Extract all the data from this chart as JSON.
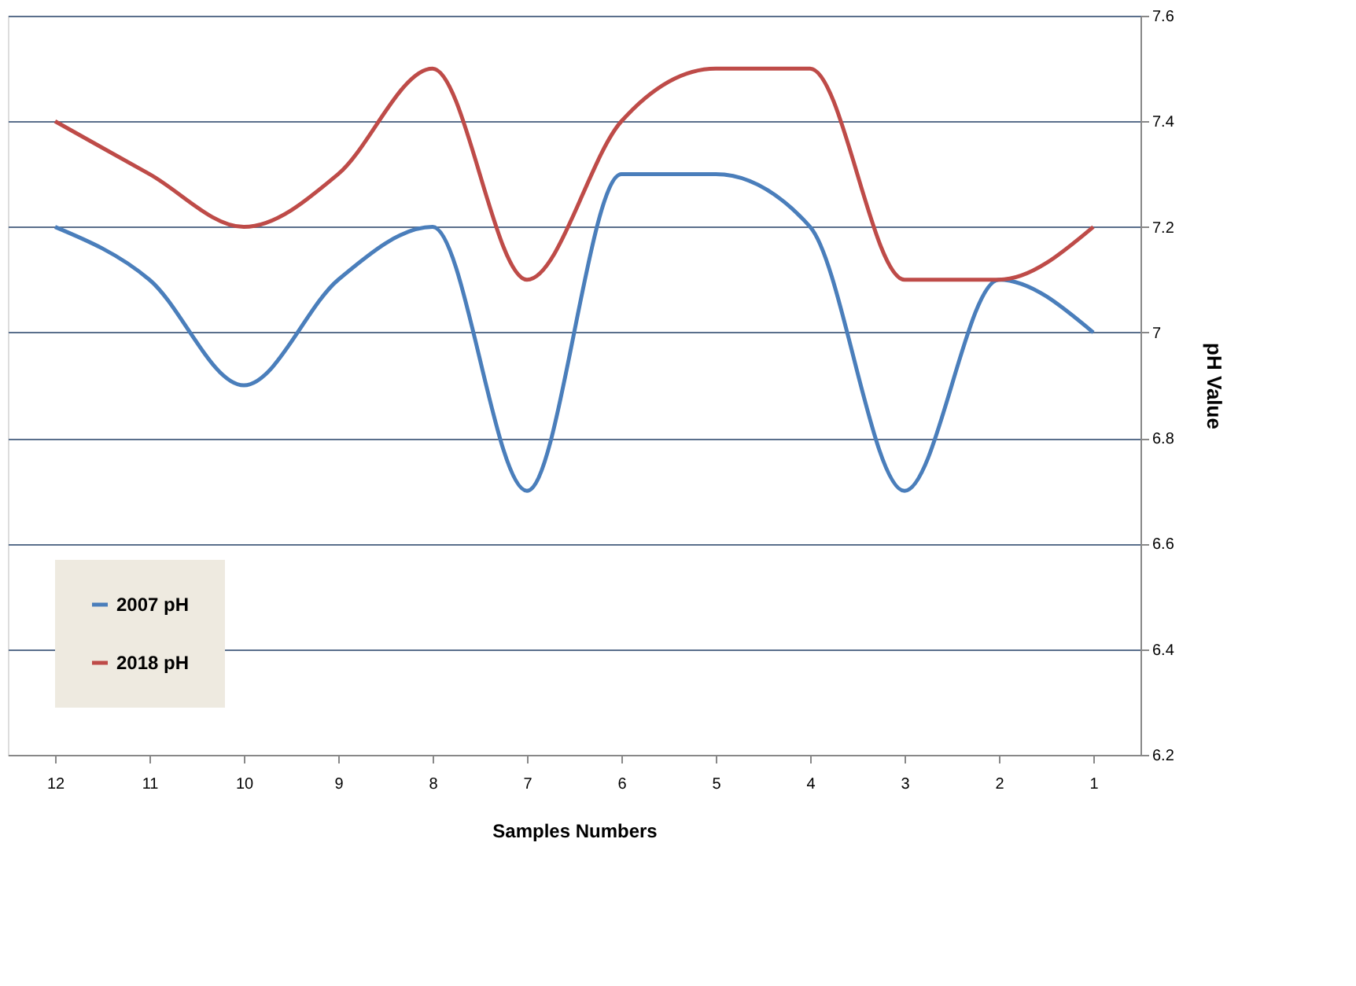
{
  "chart_data": {
    "type": "line",
    "xlabel": "Samples Numbers",
    "ylabel": "pH Value",
    "categories": [
      "12",
      "11",
      "10",
      "9",
      "8",
      "7",
      "6",
      "5",
      "4",
      "3",
      "2",
      "1"
    ],
    "series": [
      {
        "name": "2007 pH",
        "color": "#4a7ebb",
        "values": [
          7.2,
          7.1,
          6.9,
          7.1,
          7.2,
          6.7,
          7.3,
          7.3,
          7.2,
          6.7,
          7.1,
          7.0
        ]
      },
      {
        "name": "2018 pH",
        "color": "#be4b48",
        "values": [
          7.4,
          7.3,
          7.2,
          7.3,
          7.5,
          7.1,
          7.4,
          7.5,
          7.5,
          7.1,
          7.1,
          7.2
        ]
      }
    ],
    "ylim": [
      6.2,
      7.6
    ],
    "yticks": [
      6.2,
      6.4,
      6.6,
      6.8,
      7,
      7.2,
      7.4,
      7.6
    ],
    "grid": "y",
    "legend": "bottom left",
    "marker": "none",
    "line_style": "solid"
  }
}
